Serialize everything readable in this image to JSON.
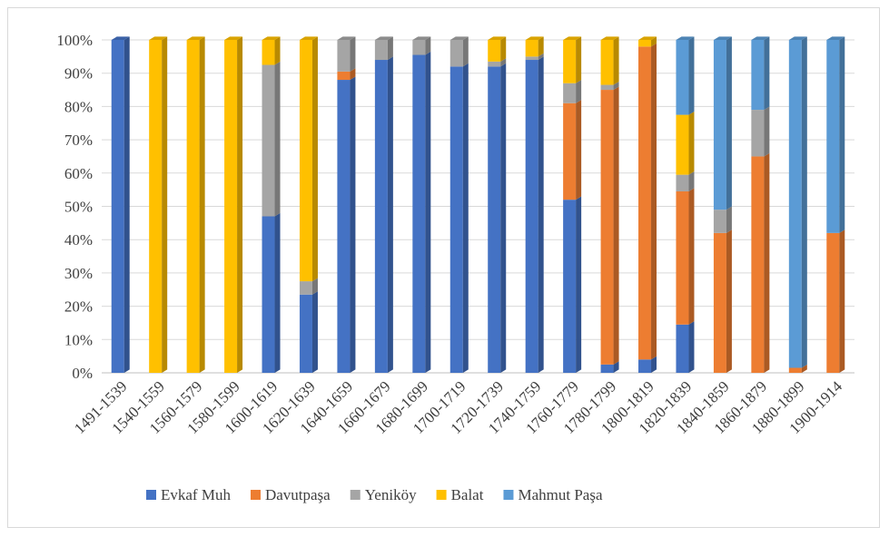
{
  "chart_data": {
    "type": "bar",
    "stacked": true,
    "percent": true,
    "title": "",
    "xlabel": "",
    "ylabel": "",
    "ylim": [
      0,
      100
    ],
    "y_ticks": [
      "0%",
      "10%",
      "20%",
      "30%",
      "40%",
      "50%",
      "60%",
      "70%",
      "80%",
      "90%",
      "100%"
    ],
    "grid": true,
    "legend_position": "bottom",
    "categories": [
      "1491-1539",
      "1540-1559",
      "1560-1579",
      "1580-1599",
      "1600-1619",
      "1620-1639",
      "1640-1659",
      "1660-1679",
      "1680-1699",
      "1700-1719",
      "1720-1739",
      "1740-1759",
      "1760-1779",
      "1780-1799",
      "1800-1819",
      "1820-1839",
      "1840-1859",
      "1860-1879",
      "1880-1899",
      "1900-1914"
    ],
    "series": [
      {
        "name": "Evkaf Muh",
        "color": "#4472c4",
        "values": [
          100,
          0,
          0,
          0,
          47,
          23.5,
          88,
          94,
          95.5,
          92,
          92,
          94,
          52,
          2.5,
          4,
          14.5,
          0,
          0,
          0,
          0
        ]
      },
      {
        "name": "Davutpaşa",
        "color": "#ed7d31",
        "values": [
          0,
          0,
          0,
          0,
          0,
          0,
          2.5,
          0,
          0,
          0,
          0,
          0,
          29,
          82.5,
          94,
          40,
          42,
          65,
          1.5,
          42
        ]
      },
      {
        "name": "Yeniköy",
        "color": "#a5a5a5",
        "values": [
          0,
          0,
          0,
          0,
          45.5,
          4,
          9.5,
          6,
          4.5,
          8,
          1.5,
          1,
          6,
          1.5,
          0,
          5,
          7,
          14,
          0,
          0
        ]
      },
      {
        "name": "Balat",
        "color": "#ffc000",
        "values": [
          0,
          100,
          100,
          100,
          7.5,
          72.5,
          0,
          0,
          0,
          0,
          6.5,
          5,
          13,
          13.5,
          2,
          18,
          0,
          0,
          0,
          0
        ]
      },
      {
        "name": "Mahmut Paşa",
        "color": "#5b9bd5",
        "values": [
          0,
          0,
          0,
          0,
          0,
          0,
          0,
          0,
          0,
          0,
          0,
          0,
          0,
          0,
          0,
          22.5,
          51,
          21,
          98.5,
          58
        ]
      }
    ]
  }
}
